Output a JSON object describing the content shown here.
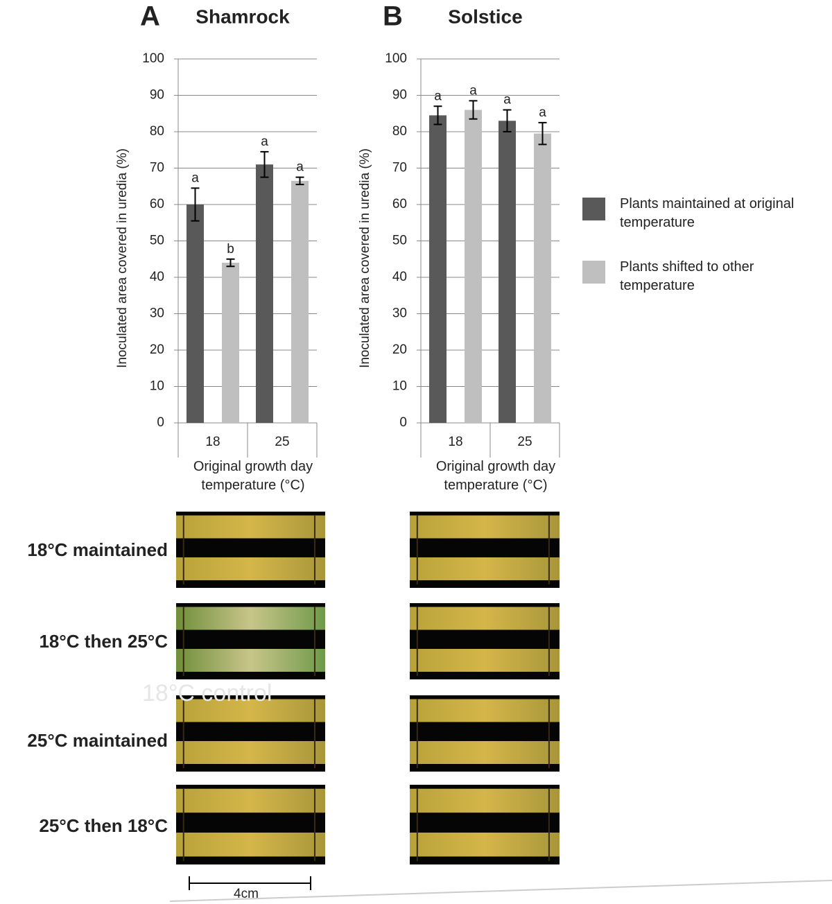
{
  "chart_data": [
    {
      "type": "bar",
      "panel": "A",
      "title": "Shamrock",
      "ylabel": "Inoculated area covered in uredia (%)",
      "xlabel": "Original growth day temperature (°C)",
      "categories": [
        "18",
        "25"
      ],
      "ylim": [
        0,
        100
      ],
      "yticks": [
        0,
        10,
        20,
        30,
        40,
        50,
        60,
        70,
        80,
        90,
        100
      ],
      "grid": true,
      "series": [
        {
          "color": "#595959",
          "values": [
            60,
            71
          ],
          "errors": [
            4.5,
            3.5
          ],
          "letters": [
            "a",
            "a"
          ]
        },
        {
          "color": "#bfbfbf",
          "values": [
            44,
            66.5
          ],
          "errors": [
            1,
            1
          ],
          "letters": [
            "b",
            "a"
          ]
        }
      ]
    },
    {
      "type": "bar",
      "panel": "B",
      "title": "Solstice",
      "ylabel": "Inoculated area covered in uredia (%)",
      "xlabel": "Original growth day temperature (°C)",
      "categories": [
        "18",
        "25"
      ],
      "ylim": [
        0,
        100
      ],
      "yticks": [
        0,
        10,
        20,
        30,
        40,
        50,
        60,
        70,
        80,
        90,
        100
      ],
      "grid": true,
      "series": [
        {
          "color": "#595959",
          "values": [
            84.5,
            83
          ],
          "errors": [
            2.5,
            3
          ],
          "letters": [
            "a",
            "a"
          ]
        },
        {
          "color": "#bfbfbf",
          "values": [
            86,
            79.5
          ],
          "errors": [
            2.5,
            3
          ],
          "letters": [
            "a",
            "a"
          ]
        }
      ]
    }
  ],
  "legend": [
    {
      "name": "Plants maintained at original temperature",
      "color": "#595959"
    },
    {
      "name": "Plants shifted to other temperature",
      "color": "#bfbfbf"
    }
  ],
  "row_labels": [
    "18°C maintained",
    "18°C then 25°C",
    "25°C maintained",
    "25°C then 18°C"
  ],
  "watermark": "18°C control",
  "scale_bar": "4cm"
}
